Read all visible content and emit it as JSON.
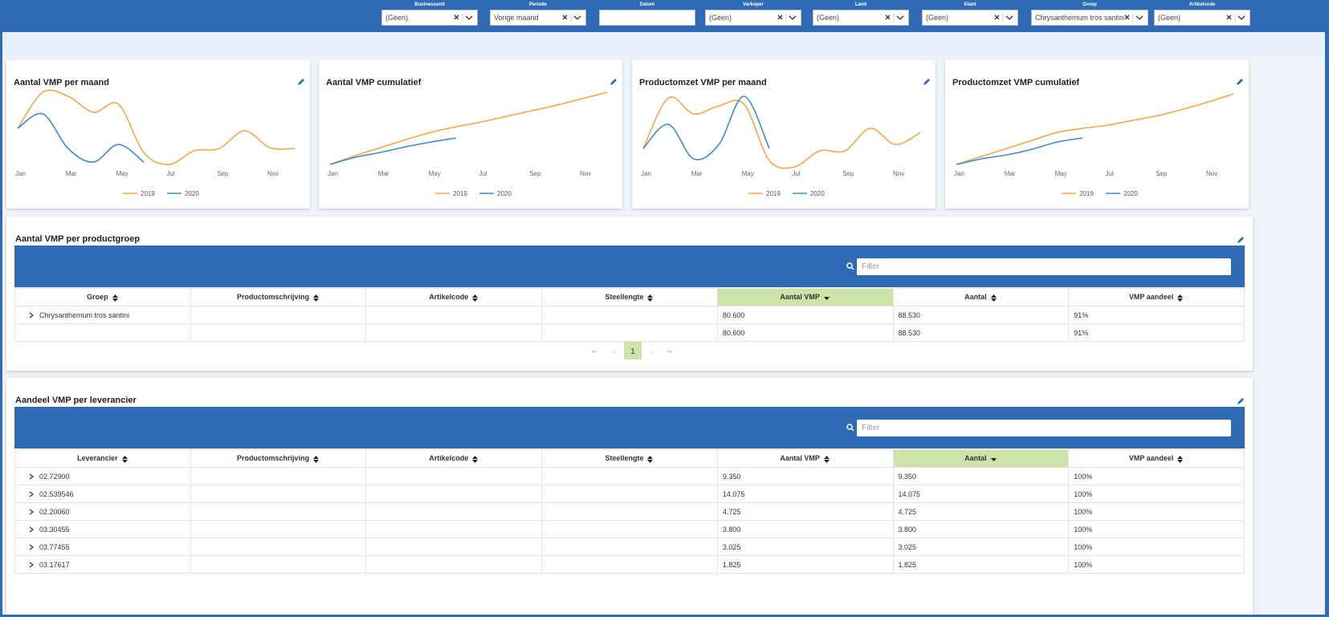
{
  "filters": [
    {
      "label": "Businessunit",
      "value": "(Geen)"
    },
    {
      "label": "Periode",
      "value": "Vorige maand"
    },
    {
      "label": "Datum"
    },
    {
      "label": "Verkoper",
      "value": "(Geen)"
    },
    {
      "label": "Land",
      "value": "(Geen)"
    },
    {
      "label": "Klant",
      "value": "(Geen)"
    },
    {
      "label": "Groep",
      "value": "Chrysanthemum tros santini"
    },
    {
      "label": "Artikelcode",
      "value": "(Geen)"
    }
  ],
  "chart_data": [
    {
      "type": "line",
      "title": "Aantal VMP per maand",
      "categories": [
        "Jan",
        null,
        "Mar",
        null,
        "May",
        null,
        "Jul",
        null,
        "Sep",
        null,
        "Nov",
        null
      ],
      "ylim": [
        0,
        110
      ],
      "series": [
        {
          "name": "2019",
          "color": "#f5a54a",
          "values": [
            50,
            95,
            90,
            70,
            80,
            20,
            5,
            22,
            25,
            47,
            26,
            25
          ]
        },
        {
          "name": "2020",
          "color": "#3c8dc8",
          "values": [
            50,
            68,
            25,
            8,
            30,
            8,
            null,
            null,
            null,
            null,
            null,
            null
          ]
        }
      ]
    },
    {
      "type": "line",
      "title": "Aantal VMP cumulatief",
      "categories": [
        "Jan",
        null,
        "Mar",
        null,
        "May",
        null,
        "Jul",
        null,
        "Sep",
        null,
        "Nov",
        null
      ],
      "ylim": [
        0,
        110
      ],
      "series": [
        {
          "name": "2019",
          "color": "#f5a54a",
          "values": [
            5,
            16,
            26,
            36,
            45,
            52,
            58,
            65,
            72,
            79,
            87,
            95
          ]
        },
        {
          "name": "2020",
          "color": "#3c8dc8",
          "values": [
            5,
            14,
            20,
            27,
            33,
            38,
            null,
            null,
            null,
            null,
            null,
            null
          ]
        }
      ]
    },
    {
      "type": "line",
      "title": "Productomzet VMP per maand",
      "categories": [
        "Jan",
        null,
        "Mar",
        null,
        "May",
        null,
        "Jul",
        null,
        "Sep",
        null,
        "Nov",
        null
      ],
      "ylim": [
        0,
        110
      ],
      "series": [
        {
          "name": "2019",
          "color": "#f5a54a",
          "values": [
            25,
            88,
            68,
            78,
            80,
            10,
            2,
            22,
            22,
            50,
            30,
            45
          ]
        },
        {
          "name": "2020",
          "color": "#3c8dc8",
          "values": [
            25,
            55,
            12,
            30,
            90,
            25,
            null,
            null,
            null,
            null,
            null,
            null
          ]
        }
      ]
    },
    {
      "type": "line",
      "title": "Productomzet VMP cumulatief",
      "categories": [
        "Jan",
        null,
        "Mar",
        null,
        "May",
        null,
        "Jul",
        null,
        "Sep",
        null,
        "Nov",
        null
      ],
      "ylim": [
        0,
        110
      ],
      "series": [
        {
          "name": "2019",
          "color": "#f5a54a",
          "values": [
            5,
            15,
            25,
            35,
            45,
            50,
            54,
            60,
            66,
            74,
            83,
            93
          ]
        },
        {
          "name": "2020",
          "color": "#3c8dc8",
          "values": [
            5,
            12,
            17,
            24,
            33,
            38,
            null,
            null,
            null,
            null,
            null,
            null
          ]
        }
      ]
    }
  ],
  "tables": [
    {
      "title": "Aantal VMP per productgroep",
      "filter_placeholder": "Filter",
      "sorted_column": 4,
      "columns": [
        "Groep",
        "Productomschrijving",
        "Artikelcode",
        "Steellengte",
        "Aantal VMP",
        "Aantal",
        "VMP aandeel"
      ],
      "rows": [
        [
          "Chrysanthemum tros santini",
          null,
          null,
          null,
          "80.600",
          "88.530",
          "91%"
        ]
      ],
      "total": [
        null,
        null,
        null,
        null,
        "80.600",
        "88.530",
        "91%"
      ],
      "page": "1"
    },
    {
      "title": "Aandeel VMP per leverancier",
      "filter_placeholder": "Filter",
      "sorted_column": 5,
      "columns": [
        "Leverancier",
        "Productomschrijving",
        "Artikelcode",
        "Steellengte",
        "Aantal VMP",
        "Aantal",
        "VMP aandeel"
      ],
      "rows": [
        [
          "02.72900",
          null,
          null,
          null,
          "9.350",
          "9.350",
          "100%"
        ],
        [
          "02.539546",
          null,
          null,
          null,
          "14.075",
          "14.075",
          "100%"
        ],
        [
          "02.20060",
          null,
          null,
          null,
          "4.725",
          "4.725",
          "100%"
        ],
        [
          "03.30455",
          null,
          null,
          null,
          "3.800",
          "3.800",
          "100%"
        ],
        [
          "03.77455",
          null,
          null,
          null,
          "3.025",
          "3.025",
          "100%"
        ],
        [
          "03.17617",
          null,
          null,
          null,
          "1.825",
          "1.825",
          "100%"
        ]
      ]
    }
  ]
}
